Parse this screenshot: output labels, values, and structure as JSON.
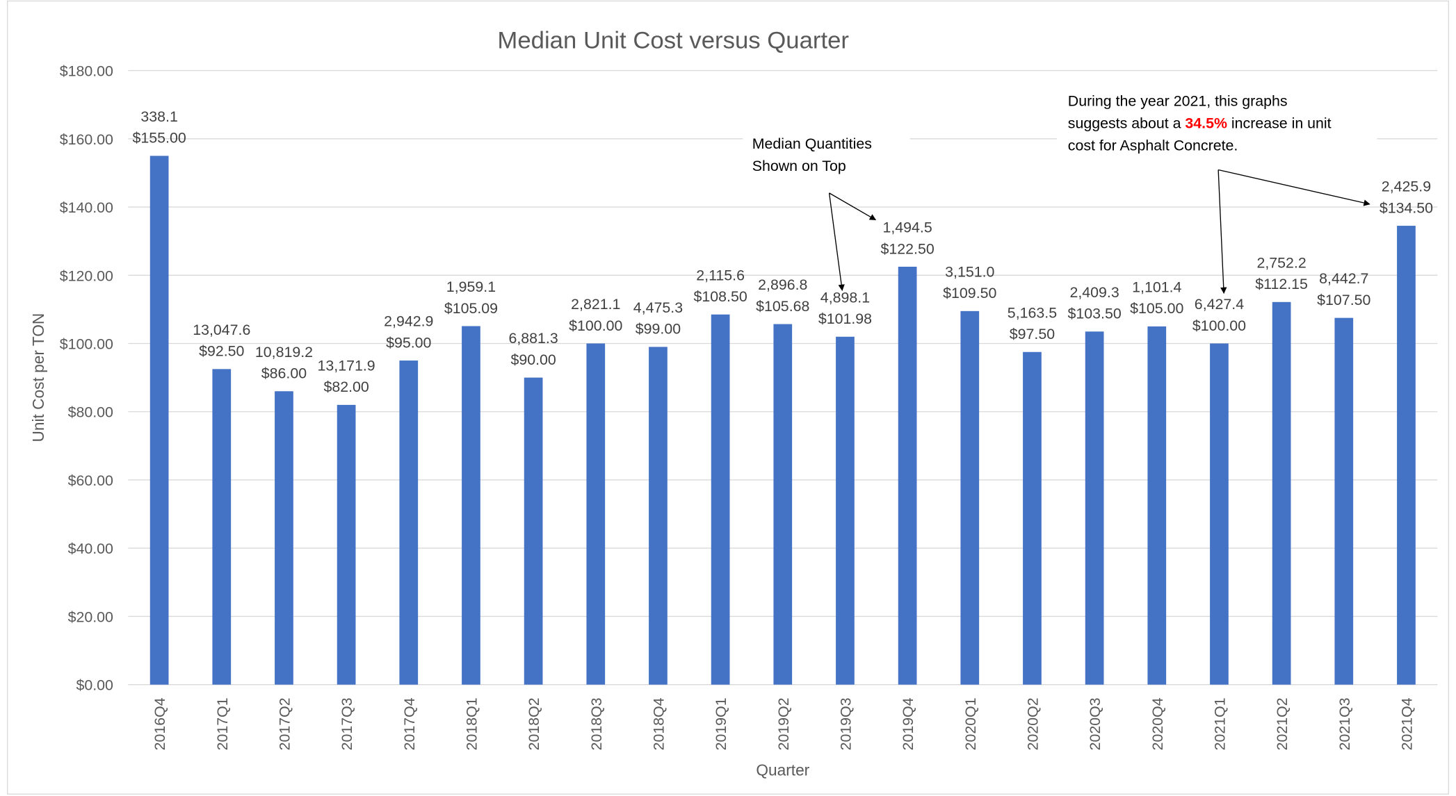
{
  "chart_data": {
    "type": "bar",
    "title": "Median Unit Cost versus Quarter",
    "x_label": "Quarter",
    "y_label": "Unit Cost per TON",
    "categories": [
      "2016Q4",
      "2017Q1",
      "2017Q2",
      "2017Q3",
      "2017Q4",
      "2018Q1",
      "2018Q2",
      "2018Q3",
      "2018Q4",
      "2019Q1",
      "2019Q2",
      "2019Q3",
      "2019Q4",
      "2020Q1",
      "2020Q2",
      "2020Q3",
      "2020Q4",
      "2021Q1",
      "2021Q2",
      "2021Q3",
      "2021Q4"
    ],
    "values": [
      155,
      92.5,
      86,
      82,
      95,
      105.09,
      90,
      100,
      99,
      108.5,
      105.68,
      101.98,
      122.5,
      109.5,
      97.5,
      103.5,
      105,
      100,
      112.15,
      107.5,
      134.5
    ],
    "value_labels": [
      "$155.00",
      "$92.50",
      "$86.00",
      "$82.00",
      "$95.00",
      "$105.09",
      "$90.00",
      "$100.00",
      "$99.00",
      "$108.50",
      "$105.68",
      "$101.98",
      "$122.50",
      "$109.50",
      "$97.50",
      "$103.50",
      "$105.00",
      "$100.00",
      "$112.15",
      "$107.50",
      "$134.50"
    ],
    "quantity_labels": [
      "338.1",
      "13,047.6",
      "10,819.2",
      "13,171.9",
      "2,942.9",
      "1,959.1",
      "6,881.3",
      "2,821.1",
      "4,475.3",
      "2,115.6",
      "2,896.8",
      "4,898.1",
      "1,494.5",
      "3,151.0",
      "5,163.5",
      "2,409.3",
      "1,101.4",
      "6,427.4",
      "2,752.2",
      "8,442.7",
      "2,425.9"
    ],
    "color": "#4472c4",
    "ylim": [
      0,
      180
    ],
    "yticks": [
      {
        "value": 0,
        "label": "$0.00"
      },
      {
        "value": 20,
        "label": "$20.00"
      },
      {
        "value": 40,
        "label": "$40.00"
      },
      {
        "value": 60,
        "label": "$60.00"
      },
      {
        "value": 80,
        "label": "$80.00"
      },
      {
        "value": 100,
        "label": "$100.00"
      },
      {
        "value": 120,
        "label": "$120.00"
      },
      {
        "value": 140,
        "label": "$140.00"
      },
      {
        "value": 160,
        "label": "$160.00"
      },
      {
        "value": 180,
        "label": "$180.00"
      }
    ],
    "grid": true,
    "annotations": [
      {
        "lines": [
          "Median Quantities",
          "Shown on Top"
        ]
      },
      {
        "lines": [
          "During the year 2021, this graphs",
          "suggests about a ",
          "34.5%",
          " increase in unit",
          "cost for Asphalt Concrete."
        ]
      }
    ]
  }
}
